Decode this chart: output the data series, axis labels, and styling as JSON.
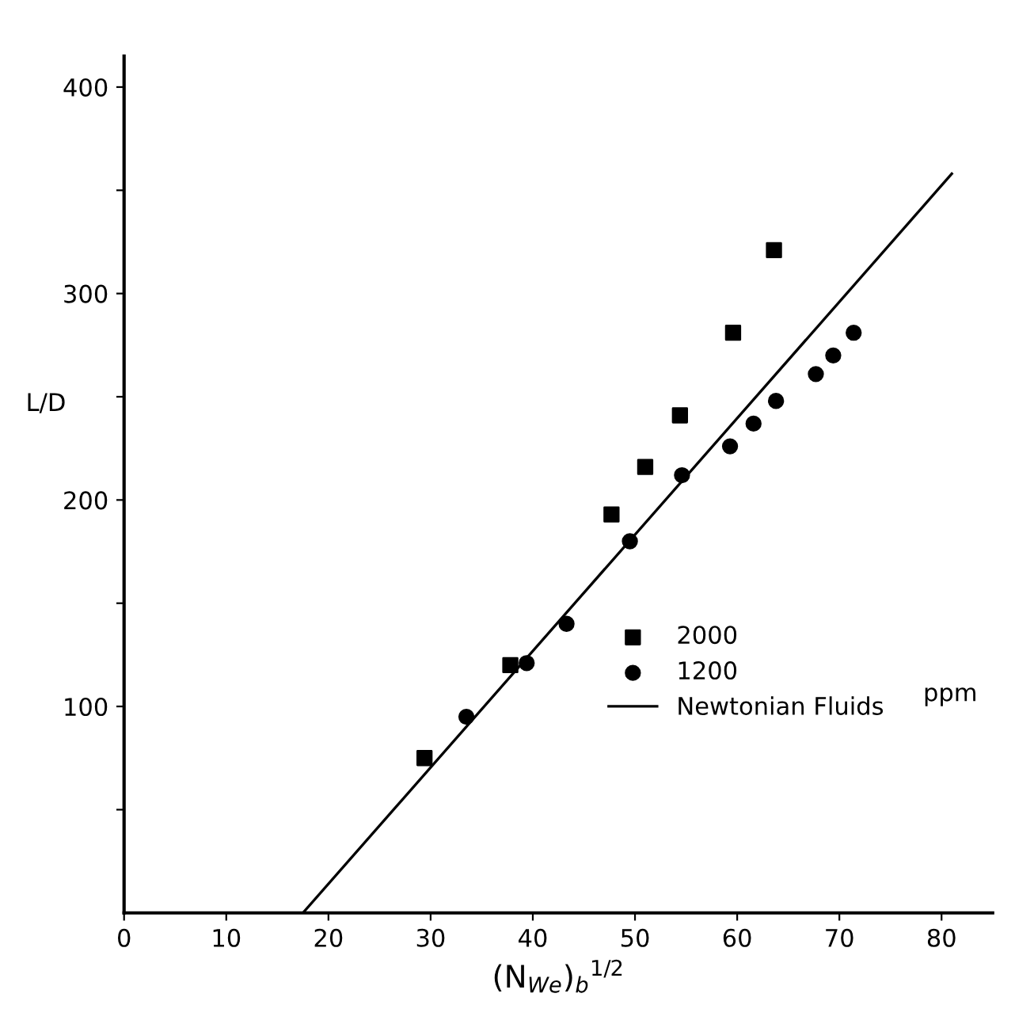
{
  "chart_data": {
    "type": "scatter",
    "ylabel": "L/D",
    "xlabel": "(N$_{We}$)$_{b}$$^{1/2}$",
    "xlim": [
      0,
      85
    ],
    "ylim": [
      0,
      415
    ],
    "xticks": [
      0,
      10,
      20,
      30,
      40,
      50,
      60,
      70,
      80
    ],
    "yticks": [
      {
        "value": 50,
        "label": null
      },
      100,
      {
        "value": 150,
        "label": null
      },
      200,
      {
        "value": 250,
        "label": null
      },
      300,
      {
        "value": 350,
        "label": null
      },
      400
    ],
    "grid": false,
    "legend": "right",
    "annotations": [
      "ppm"
    ],
    "series": [
      {
        "name": "2000",
        "color": "#000000",
        "marker": "square",
        "x": [
          29.4,
          37.8,
          47.7,
          51.0,
          54.4,
          59.6,
          63.6
        ],
        "values": [
          75,
          120,
          193,
          216,
          241,
          281,
          321
        ]
      },
      {
        "name": "1200",
        "color": "#000000",
        "marker": "circle",
        "x": [
          33.5,
          39.4,
          43.3,
          49.5,
          54.6,
          59.3,
          61.6,
          63.8,
          67.7,
          69.4,
          71.4
        ],
        "values": [
          95,
          121,
          140,
          180,
          212,
          226,
          237,
          248,
          261,
          270,
          281
        ]
      },
      {
        "name": "Newtonian Fluids",
        "type": "line",
        "color": "#000000",
        "marker": "none",
        "line_style": "solid",
        "x": [
          17.5,
          81
        ],
        "values": [
          0,
          358
        ]
      }
    ]
  }
}
